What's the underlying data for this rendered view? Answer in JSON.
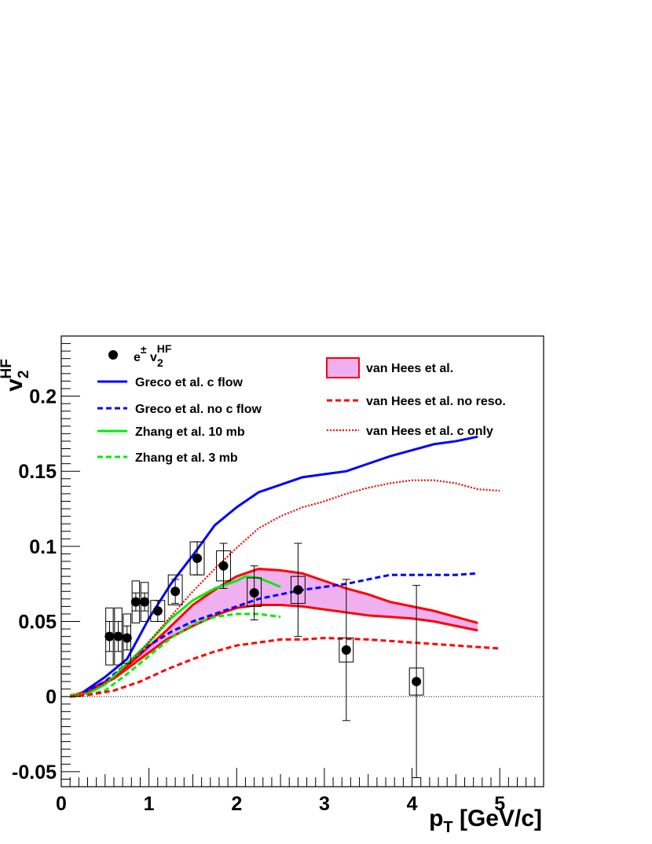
{
  "chart_data": {
    "type": "line",
    "title": "",
    "xlabel": {
      "main": "p",
      "sub": "T",
      "rest": " [GeV/c]"
    },
    "ylabel": {
      "main": "v",
      "sub": "2",
      "sup": "HF"
    },
    "xlim": [
      0,
      5.5
    ],
    "ylim": [
      -0.06,
      0.24
    ],
    "x_ticks": [
      0,
      1,
      2,
      3,
      4,
      5
    ],
    "y_ticks": [
      -0.05,
      0,
      0.05,
      0.1,
      0.15,
      0.2
    ],
    "x_tick_labels": [
      "0",
      "1",
      "2",
      "3",
      "4",
      "5"
    ],
    "y_tick_labels": [
      "-0.05",
      "0",
      "0.05",
      "0.1",
      "0.15",
      "0.2"
    ],
    "grid": false,
    "zero_line": {
      "style": "dotted",
      "color": "#000000"
    },
    "data_points": {
      "name": "e± v2HF",
      "points": [
        {
          "x": 0.55,
          "y": 0.04,
          "stat": 0.01,
          "syst_lo": 0.021,
          "syst_hi": 0.059,
          "syst_w": 0.085
        },
        {
          "x": 0.65,
          "y": 0.04,
          "stat": 0.01,
          "syst_lo": 0.021,
          "syst_hi": 0.059,
          "syst_w": 0.085
        },
        {
          "x": 0.75,
          "y": 0.039,
          "stat": 0.008,
          "syst_lo": 0.022,
          "syst_hi": 0.055,
          "syst_w": 0.085
        },
        {
          "x": 0.85,
          "y": 0.063,
          "stat": 0.006,
          "syst_lo": 0.049,
          "syst_hi": 0.077,
          "syst_w": 0.085
        },
        {
          "x": 0.95,
          "y": 0.063,
          "stat": 0.006,
          "syst_lo": 0.05,
          "syst_hi": 0.076,
          "syst_w": 0.085
        },
        {
          "x": 1.1,
          "y": 0.057,
          "stat": 0.007,
          "syst_lo": 0.05,
          "syst_hi": 0.064,
          "syst_w": 0.16
        },
        {
          "x": 1.3,
          "y": 0.07,
          "stat": 0.008,
          "syst_lo": 0.061,
          "syst_hi": 0.081,
          "syst_w": 0.16
        },
        {
          "x": 1.55,
          "y": 0.092,
          "stat": 0.011,
          "syst_lo": 0.081,
          "syst_hi": 0.103,
          "syst_w": 0.16
        },
        {
          "x": 1.85,
          "y": 0.087,
          "stat": 0.015,
          "syst_lo": 0.077,
          "syst_hi": 0.097,
          "syst_w": 0.16
        },
        {
          "x": 2.2,
          "y": 0.069,
          "stat": 0.018,
          "syst_lo": 0.06,
          "syst_hi": 0.079,
          "syst_w": 0.16
        },
        {
          "x": 2.7,
          "y": 0.071,
          "stat": 0.031,
          "syst_lo": 0.062,
          "syst_hi": 0.08,
          "syst_w": 0.16
        },
        {
          "x": 3.25,
          "y": 0.031,
          "stat": 0.047,
          "syst_lo": 0.023,
          "syst_hi": 0.039,
          "syst_w": 0.16
        },
        {
          "x": 4.05,
          "y": 0.01,
          "stat": 0.064,
          "syst_lo": 0.001,
          "syst_hi": 0.019,
          "syst_w": 0.16
        }
      ]
    },
    "band": {
      "name": "van Hees et al.",
      "fill": "#f0b0f0",
      "stroke": "#ff0000",
      "upper": [
        [
          0.1,
          0
        ],
        [
          0.3,
          0.004
        ],
        [
          0.6,
          0.013
        ],
        [
          0.9,
          0.028
        ],
        [
          1.2,
          0.044
        ],
        [
          1.5,
          0.061
        ],
        [
          1.8,
          0.073
        ],
        [
          2.0,
          0.08
        ],
        [
          2.25,
          0.085
        ],
        [
          2.5,
          0.084
        ],
        [
          2.75,
          0.082
        ],
        [
          3.0,
          0.077
        ],
        [
          3.25,
          0.072
        ],
        [
          3.5,
          0.068
        ],
        [
          3.75,
          0.063
        ],
        [
          4.0,
          0.06
        ],
        [
          4.25,
          0.057
        ],
        [
          4.5,
          0.053
        ],
        [
          4.75,
          0.049
        ]
      ],
      "lower": [
        [
          0.1,
          0
        ],
        [
          0.3,
          0.003
        ],
        [
          0.6,
          0.012
        ],
        [
          0.9,
          0.025
        ],
        [
          1.2,
          0.038
        ],
        [
          1.5,
          0.047
        ],
        [
          1.8,
          0.055
        ],
        [
          2.0,
          0.059
        ],
        [
          2.25,
          0.061
        ],
        [
          2.5,
          0.061
        ],
        [
          2.75,
          0.06
        ],
        [
          3.0,
          0.058
        ],
        [
          3.25,
          0.056
        ],
        [
          3.5,
          0.054
        ],
        [
          3.75,
          0.053
        ],
        [
          4.0,
          0.052
        ],
        [
          4.25,
          0.05
        ],
        [
          4.5,
          0.047
        ],
        [
          4.75,
          0.044
        ]
      ]
    },
    "series": [
      {
        "name": "Greco et al. c flow",
        "color": "#0000ff",
        "dash": "solid",
        "points": [
          [
            0.25,
            0.003
          ],
          [
            0.5,
            0.013
          ],
          [
            0.75,
            0.025
          ],
          [
            1.0,
            0.052
          ],
          [
            1.25,
            0.075
          ],
          [
            1.5,
            0.094
          ],
          [
            1.75,
            0.114
          ],
          [
            2.0,
            0.126
          ],
          [
            2.25,
            0.136
          ],
          [
            2.5,
            0.141
          ],
          [
            2.75,
            0.146
          ],
          [
            3.0,
            0.148
          ],
          [
            3.25,
            0.15
          ],
          [
            3.5,
            0.155
          ],
          [
            3.75,
            0.16
          ],
          [
            4.0,
            0.164
          ],
          [
            4.25,
            0.168
          ],
          [
            4.5,
            0.17
          ],
          [
            4.75,
            0.173
          ]
        ]
      },
      {
        "name": "Greco et al. no c flow",
        "color": "#0000ff",
        "dash": "dashed",
        "points": [
          [
            0.25,
            0.002
          ],
          [
            0.5,
            0.01
          ],
          [
            0.75,
            0.022
          ],
          [
            1.0,
            0.034
          ],
          [
            1.25,
            0.043
          ],
          [
            1.5,
            0.05
          ],
          [
            1.75,
            0.055
          ],
          [
            2.0,
            0.06
          ],
          [
            2.25,
            0.065
          ],
          [
            2.5,
            0.068
          ],
          [
            2.75,
            0.071
          ],
          [
            3.0,
            0.073
          ],
          [
            3.25,
            0.075
          ],
          [
            3.5,
            0.078
          ],
          [
            3.75,
            0.081
          ],
          [
            4.0,
            0.081
          ],
          [
            4.25,
            0.081
          ],
          [
            4.5,
            0.081
          ],
          [
            4.75,
            0.082
          ]
        ]
      },
      {
        "name": "Zhang et al. 10 mb",
        "color": "#00ee00",
        "dash": "solid",
        "points": [
          [
            0.1,
            0.001
          ],
          [
            0.3,
            0.002
          ],
          [
            0.5,
            0.008
          ],
          [
            0.75,
            0.022
          ],
          [
            1.0,
            0.036
          ],
          [
            1.25,
            0.052
          ],
          [
            1.5,
            0.064
          ],
          [
            1.75,
            0.072
          ],
          [
            2.0,
            0.077
          ],
          [
            2.1,
            0.08
          ],
          [
            2.25,
            0.079
          ],
          [
            2.5,
            0.073
          ]
        ]
      },
      {
        "name": "Zhang et al. 3 mb",
        "color": "#00ee00",
        "dash": "dashed",
        "points": [
          [
            0.1,
            0.0
          ],
          [
            0.3,
            0.001
          ],
          [
            0.5,
            0.004
          ],
          [
            0.75,
            0.015
          ],
          [
            1.0,
            0.027
          ],
          [
            1.25,
            0.039
          ],
          [
            1.5,
            0.048
          ],
          [
            1.75,
            0.053
          ],
          [
            2.0,
            0.055
          ],
          [
            2.25,
            0.055
          ],
          [
            2.5,
            0.053
          ]
        ]
      },
      {
        "name": "van Hees et al. no reso.",
        "color": "#ff0000",
        "dash": "dashed",
        "points": [
          [
            0.1,
            0.0
          ],
          [
            0.3,
            0.001
          ],
          [
            0.6,
            0.004
          ],
          [
            0.9,
            0.01
          ],
          [
            1.2,
            0.018
          ],
          [
            1.5,
            0.025
          ],
          [
            1.75,
            0.03
          ],
          [
            2.0,
            0.034
          ],
          [
            2.25,
            0.036
          ],
          [
            2.5,
            0.038
          ],
          [
            2.75,
            0.038
          ],
          [
            3.0,
            0.039
          ],
          [
            3.5,
            0.038
          ],
          [
            4.0,
            0.036
          ],
          [
            4.5,
            0.034
          ],
          [
            5.0,
            0.032
          ]
        ]
      },
      {
        "name": "van Hees et al. c only",
        "color": "#ff0000",
        "dash": "dotted",
        "points": [
          [
            0.1,
            0.0
          ],
          [
            0.3,
            0.003
          ],
          [
            0.6,
            0.012
          ],
          [
            0.9,
            0.03
          ],
          [
            1.2,
            0.05
          ],
          [
            1.5,
            0.07
          ],
          [
            1.75,
            0.085
          ],
          [
            2.0,
            0.099
          ],
          [
            2.25,
            0.112
          ],
          [
            2.5,
            0.12
          ],
          [
            2.75,
            0.126
          ],
          [
            3.0,
            0.13
          ],
          [
            3.25,
            0.135
          ],
          [
            3.5,
            0.139
          ],
          [
            3.75,
            0.142
          ],
          [
            4.0,
            0.144
          ],
          [
            4.25,
            0.144
          ],
          [
            4.5,
            0.142
          ],
          [
            4.75,
            0.138
          ],
          [
            5.0,
            0.137
          ]
        ]
      }
    ],
    "legend": {
      "placement": "top",
      "left_column": [
        {
          "label": "e± v2HF",
          "kind": "marker"
        },
        {
          "label": "Greco et al. c flow",
          "kind": "line",
          "series": 0
        },
        {
          "label": "Greco et al. no c flow",
          "kind": "line",
          "series": 1
        },
        {
          "label": "Zhang et al. 10 mb",
          "kind": "line",
          "series": 2
        },
        {
          "label": "Zhang et al. 3 mb",
          "kind": "line",
          "series": 3
        }
      ],
      "right_column": [
        {
          "label": "van Hees et al.",
          "kind": "box"
        },
        {
          "label": "van Hees et al. no reso.",
          "kind": "line",
          "series": 4
        },
        {
          "label": "van Hees et al. c only",
          "kind": "line",
          "series": 5
        }
      ],
      "marker_label": {
        "main": "e",
        "sup1": "±",
        "mid": " v",
        "sub": "2",
        "sup2": "HF"
      }
    }
  }
}
